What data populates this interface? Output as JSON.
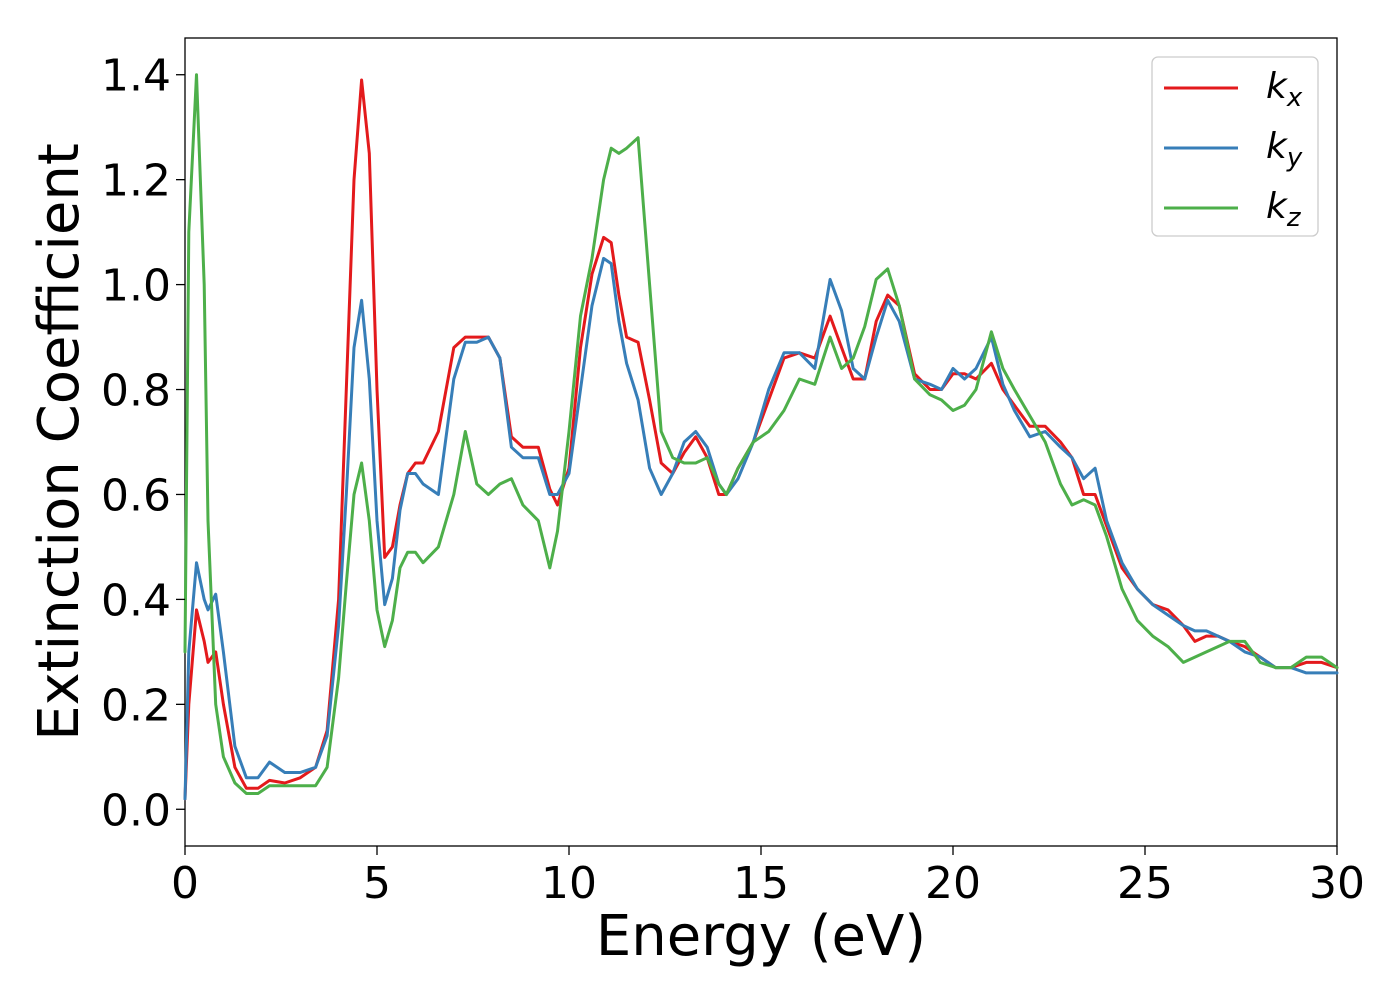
{
  "chart_data": {
    "type": "line",
    "title": "",
    "xlabel": "Energy (eV)",
    "ylabel": "Extinction Coefficient",
    "xlim": [
      0,
      30
    ],
    "ylim": [
      -0.07,
      1.47
    ],
    "xticks": [
      0,
      5,
      10,
      15,
      20,
      25,
      30
    ],
    "yticks": [
      0.0,
      0.2,
      0.4,
      0.6,
      0.8,
      1.0,
      1.2,
      1.4
    ],
    "xtick_labels": [
      "0",
      "5",
      "10",
      "15",
      "20",
      "25",
      "30"
    ],
    "ytick_labels": [
      "0.0",
      "0.2",
      "0.4",
      "0.6",
      "0.8",
      "1.0",
      "1.2",
      "1.4"
    ],
    "grid": false,
    "legend_position": "top-right",
    "series": [
      {
        "name": "k_x",
        "label_main": "k",
        "label_sub": "x",
        "color": "#e31a1c",
        "x": [
          0,
          0.1,
          0.3,
          0.5,
          0.6,
          0.8,
          1.0,
          1.3,
          1.6,
          1.9,
          2.2,
          2.6,
          3.0,
          3.4,
          3.7,
          4.0,
          4.2,
          4.4,
          4.6,
          4.8,
          5.0,
          5.2,
          5.4,
          5.6,
          5.8,
          6.0,
          6.2,
          6.6,
          7.0,
          7.3,
          7.6,
          7.9,
          8.2,
          8.5,
          8.8,
          9.2,
          9.5,
          9.7,
          10.0,
          10.3,
          10.6,
          10.9,
          11.1,
          11.3,
          11.5,
          11.8,
          12.1,
          12.4,
          12.7,
          13.0,
          13.3,
          13.6,
          13.9,
          14.1,
          14.4,
          14.8,
          15.2,
          15.6,
          16.0,
          16.4,
          16.8,
          17.1,
          17.4,
          17.7,
          18.0,
          18.3,
          18.6,
          19.0,
          19.4,
          19.7,
          20.0,
          20.3,
          20.6,
          21.0,
          21.3,
          21.6,
          22.0,
          22.4,
          22.8,
          23.1,
          23.4,
          23.7,
          24.0,
          24.4,
          24.8,
          25.2,
          25.6,
          26.0,
          26.3,
          26.6,
          26.9,
          27.2,
          27.6,
          28.0,
          28.4,
          28.8,
          29.2,
          29.6,
          30.0
        ],
        "y": [
          0.02,
          0.2,
          0.38,
          0.32,
          0.28,
          0.3,
          0.2,
          0.08,
          0.04,
          0.04,
          0.055,
          0.05,
          0.06,
          0.08,
          0.15,
          0.4,
          0.8,
          1.2,
          1.39,
          1.25,
          0.8,
          0.48,
          0.5,
          0.58,
          0.64,
          0.66,
          0.66,
          0.72,
          0.88,
          0.9,
          0.9,
          0.9,
          0.86,
          0.71,
          0.69,
          0.69,
          0.61,
          0.58,
          0.65,
          0.88,
          1.02,
          1.09,
          1.08,
          0.98,
          0.9,
          0.89,
          0.78,
          0.66,
          0.64,
          0.68,
          0.71,
          0.67,
          0.6,
          0.6,
          0.65,
          0.7,
          0.78,
          0.86,
          0.87,
          0.86,
          0.94,
          0.88,
          0.82,
          0.82,
          0.93,
          0.98,
          0.96,
          0.83,
          0.8,
          0.8,
          0.83,
          0.83,
          0.82,
          0.85,
          0.8,
          0.77,
          0.73,
          0.73,
          0.7,
          0.67,
          0.6,
          0.6,
          0.54,
          0.46,
          0.42,
          0.39,
          0.38,
          0.35,
          0.32,
          0.33,
          0.33,
          0.32,
          0.31,
          0.29,
          0.27,
          0.27,
          0.28,
          0.28,
          0.27
        ]
      },
      {
        "name": "k_y",
        "label_main": "k",
        "label_sub": "y",
        "color": "#377eb8",
        "x": [
          0,
          0.1,
          0.3,
          0.5,
          0.6,
          0.8,
          1.0,
          1.3,
          1.6,
          1.9,
          2.2,
          2.6,
          3.0,
          3.4,
          3.7,
          4.0,
          4.2,
          4.4,
          4.6,
          4.8,
          5.0,
          5.2,
          5.4,
          5.6,
          5.8,
          6.0,
          6.2,
          6.6,
          7.0,
          7.3,
          7.6,
          7.9,
          8.2,
          8.5,
          8.8,
          9.2,
          9.5,
          9.7,
          10.0,
          10.3,
          10.6,
          10.9,
          11.1,
          11.3,
          11.5,
          11.8,
          12.1,
          12.4,
          12.7,
          13.0,
          13.3,
          13.6,
          13.9,
          14.1,
          14.4,
          14.8,
          15.2,
          15.6,
          16.0,
          16.4,
          16.8,
          17.1,
          17.4,
          17.7,
          18.0,
          18.3,
          18.6,
          19.0,
          19.4,
          19.7,
          20.0,
          20.3,
          20.6,
          21.0,
          21.3,
          21.6,
          22.0,
          22.4,
          22.8,
          23.1,
          23.4,
          23.7,
          24.0,
          24.4,
          24.8,
          25.2,
          25.6,
          26.0,
          26.3,
          26.6,
          26.9,
          27.2,
          27.6,
          28.0,
          28.4,
          28.8,
          29.2,
          29.6,
          30.0
        ],
        "y": [
          0.02,
          0.3,
          0.47,
          0.4,
          0.38,
          0.41,
          0.3,
          0.12,
          0.06,
          0.06,
          0.09,
          0.07,
          0.07,
          0.08,
          0.14,
          0.35,
          0.6,
          0.88,
          0.97,
          0.82,
          0.55,
          0.39,
          0.44,
          0.57,
          0.64,
          0.64,
          0.62,
          0.6,
          0.82,
          0.89,
          0.89,
          0.9,
          0.86,
          0.69,
          0.67,
          0.67,
          0.6,
          0.6,
          0.64,
          0.8,
          0.96,
          1.05,
          1.04,
          0.93,
          0.85,
          0.78,
          0.65,
          0.6,
          0.64,
          0.7,
          0.72,
          0.69,
          0.62,
          0.6,
          0.63,
          0.7,
          0.8,
          0.87,
          0.87,
          0.84,
          1.01,
          0.95,
          0.84,
          0.82,
          0.9,
          0.97,
          0.93,
          0.82,
          0.81,
          0.8,
          0.84,
          0.82,
          0.84,
          0.9,
          0.81,
          0.76,
          0.71,
          0.72,
          0.69,
          0.67,
          0.63,
          0.65,
          0.55,
          0.47,
          0.42,
          0.39,
          0.37,
          0.35,
          0.34,
          0.34,
          0.33,
          0.32,
          0.3,
          0.29,
          0.27,
          0.27,
          0.26,
          0.26,
          0.26
        ]
      },
      {
        "name": "k_z",
        "label_main": "k",
        "label_sub": "z",
        "color": "#4daf4a",
        "x": [
          0,
          0.1,
          0.3,
          0.5,
          0.6,
          0.8,
          1.0,
          1.3,
          1.6,
          1.9,
          2.2,
          2.6,
          3.0,
          3.4,
          3.7,
          4.0,
          4.2,
          4.4,
          4.6,
          4.8,
          5.0,
          5.2,
          5.4,
          5.6,
          5.8,
          6.0,
          6.2,
          6.6,
          7.0,
          7.3,
          7.6,
          7.9,
          8.2,
          8.5,
          8.8,
          9.2,
          9.5,
          9.7,
          10.0,
          10.3,
          10.6,
          10.9,
          11.1,
          11.3,
          11.5,
          11.8,
          12.1,
          12.4,
          12.7,
          13.0,
          13.3,
          13.6,
          13.9,
          14.1,
          14.4,
          14.8,
          15.2,
          15.6,
          16.0,
          16.4,
          16.8,
          17.1,
          17.4,
          17.7,
          18.0,
          18.3,
          18.6,
          19.0,
          19.4,
          19.7,
          20.0,
          20.3,
          20.6,
          21.0,
          21.3,
          21.6,
          22.0,
          22.4,
          22.8,
          23.1,
          23.4,
          23.7,
          24.0,
          24.4,
          24.8,
          25.2,
          25.6,
          26.0,
          26.3,
          26.6,
          26.9,
          27.2,
          27.6,
          28.0,
          28.4,
          28.8,
          29.2,
          29.6,
          30.0
        ],
        "y": [
          0.3,
          1.1,
          1.4,
          1.0,
          0.55,
          0.2,
          0.1,
          0.05,
          0.03,
          0.03,
          0.045,
          0.045,
          0.045,
          0.045,
          0.08,
          0.25,
          0.43,
          0.6,
          0.66,
          0.55,
          0.38,
          0.31,
          0.36,
          0.46,
          0.49,
          0.49,
          0.47,
          0.5,
          0.6,
          0.72,
          0.62,
          0.6,
          0.62,
          0.63,
          0.58,
          0.55,
          0.46,
          0.53,
          0.72,
          0.94,
          1.05,
          1.2,
          1.26,
          1.25,
          1.26,
          1.28,
          1.0,
          0.72,
          0.67,
          0.66,
          0.66,
          0.67,
          0.62,
          0.6,
          0.65,
          0.7,
          0.72,
          0.76,
          0.82,
          0.81,
          0.9,
          0.84,
          0.86,
          0.92,
          1.01,
          1.03,
          0.96,
          0.82,
          0.79,
          0.78,
          0.76,
          0.77,
          0.8,
          0.91,
          0.84,
          0.8,
          0.75,
          0.7,
          0.62,
          0.58,
          0.59,
          0.58,
          0.52,
          0.42,
          0.36,
          0.33,
          0.31,
          0.28,
          0.29,
          0.3,
          0.31,
          0.32,
          0.32,
          0.28,
          0.27,
          0.27,
          0.29,
          0.29,
          0.27
        ]
      }
    ]
  }
}
